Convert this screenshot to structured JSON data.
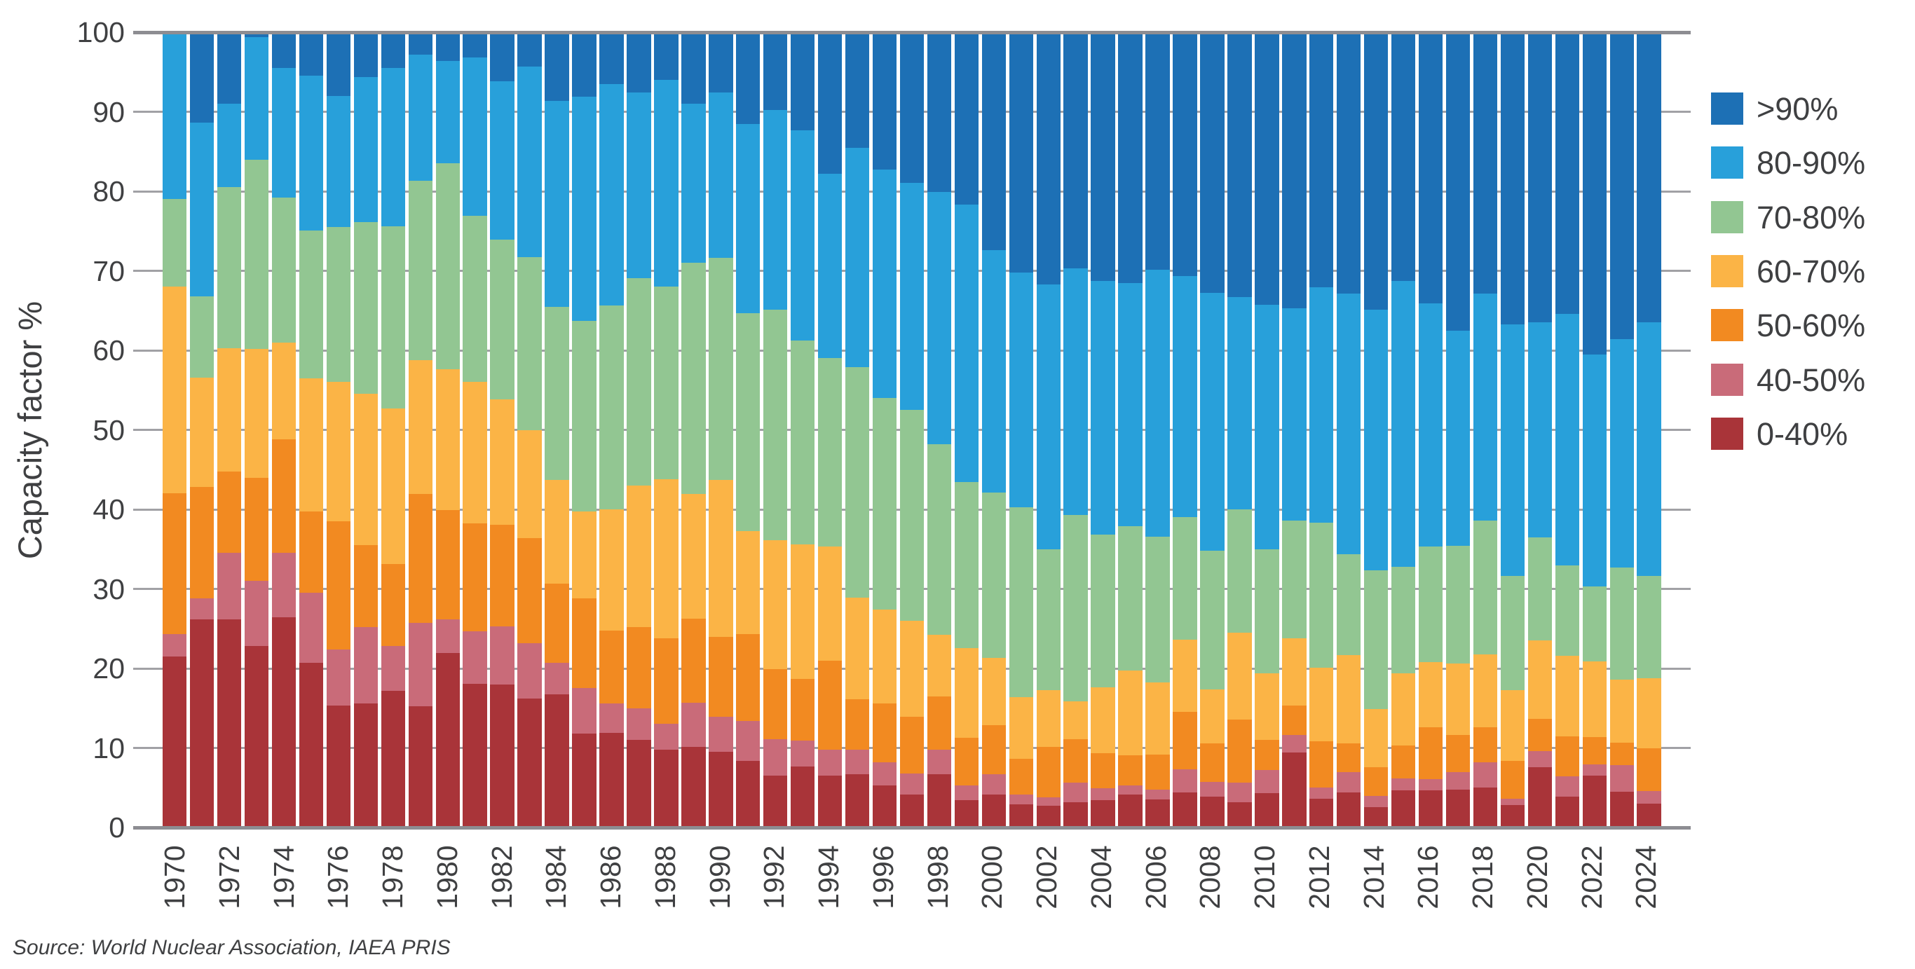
{
  "source": {
    "text": "Source: World Nuclear Association, IAEA PRIS"
  },
  "axes": {
    "y_title": "Capacity factor %",
    "y_ticks": [
      0,
      10,
      20,
      30,
      40,
      50,
      60,
      70,
      80,
      90,
      100
    ],
    "x_tick_labels": [
      "1970",
      "1972",
      "1974",
      "1976",
      "1978",
      "1980",
      "1982",
      "1984",
      "1986",
      "1988",
      "1990",
      "1992",
      "1994",
      "1996",
      "1998",
      "2000",
      "2002",
      "2004",
      "2006",
      "2008",
      "2010",
      "2012",
      "2014",
      "2016",
      "2018",
      "2020",
      "2022",
      "2024"
    ]
  },
  "colors": {
    "grid_minor": "#a1a1a5",
    "grid_major": "#8d8d92",
    "text": "#3f4042"
  },
  "legend": {
    "position": "top-right",
    "entries": [
      {
        "label": ">90%",
        "series_key": "band_gt90"
      },
      {
        "label": "80-90%",
        "series_key": "band_80_90"
      },
      {
        "label": "70-80%",
        "series_key": "band_70_80"
      },
      {
        "label": "60-70%",
        "series_key": "band_60_70"
      },
      {
        "label": "50-60%",
        "series_key": "band_50_60"
      },
      {
        "label": "40-50%",
        "series_key": "band_40_50"
      },
      {
        "label": "0-40%",
        "series_key": "band_0_40"
      }
    ]
  },
  "chart_data": {
    "type": "bar",
    "stacked": true,
    "normalized_percent": true,
    "title": "",
    "xlabel": "",
    "ylabel": "Capacity factor %",
    "ylim": [
      0,
      100
    ],
    "grid": "horizontal",
    "categories": [
      1970,
      1971,
      1972,
      1973,
      1974,
      1975,
      1976,
      1977,
      1978,
      1979,
      1980,
      1981,
      1982,
      1983,
      1984,
      1985,
      1986,
      1987,
      1988,
      1989,
      1990,
      1991,
      1992,
      1993,
      1994,
      1995,
      1996,
      1997,
      1998,
      1999,
      2000,
      2001,
      2002,
      2003,
      2004,
      2005,
      2006,
      2007,
      2008,
      2009,
      2010,
      2011,
      2012,
      2013,
      2014,
      2015,
      2016,
      2017,
      2018,
      2019,
      2020,
      2021,
      2022,
      2023,
      2024
    ],
    "series": [
      {
        "key": "band_0_40",
        "name": "0-40%",
        "color": "#a93439",
        "values": [
          21.5,
          26.2,
          26.2,
          22.8,
          26.4,
          20.7,
          15.3,
          15.6,
          17.2,
          15.2,
          21.9,
          18.1,
          18.0,
          16.2,
          16.7,
          11.8,
          11.9,
          11.0,
          9.8,
          10.1,
          9.5,
          8.4,
          6.5,
          7.7,
          6.5,
          6.7,
          5.3,
          4.1,
          6.7,
          3.4,
          4.1,
          2.9,
          2.7,
          3.2,
          3.4,
          4.1,
          3.5,
          4.4,
          3.9,
          3.2,
          4.3,
          9.4,
          3.6,
          4.4,
          2.6,
          4.7,
          4.7,
          4.8,
          5.0,
          2.8,
          7.6,
          3.9,
          6.5,
          4.5,
          3.0
        ]
      },
      {
        "key": "band_40_50",
        "name": "40-50%",
        "color": "#c96b79",
        "values": [
          2.8,
          2.6,
          8.3,
          8.2,
          8.1,
          8.8,
          7.1,
          9.6,
          5.6,
          10.5,
          4.3,
          6.6,
          7.3,
          7.0,
          4.0,
          5.7,
          3.7,
          4.0,
          3.2,
          5.6,
          4.4,
          5.0,
          4.6,
          3.2,
          3.3,
          3.1,
          2.9,
          2.7,
          3.1,
          1.9,
          2.6,
          1.2,
          1.1,
          2.4,
          1.5,
          1.2,
          1.3,
          2.9,
          1.8,
          2.4,
          2.9,
          2.2,
          1.4,
          2.6,
          1.4,
          1.5,
          1.4,
          2.2,
          3.2,
          0.8,
          2.0,
          2.5,
          1.4,
          3.3,
          1.6
        ]
      },
      {
        "key": "band_50_60",
        "name": "50-60%",
        "color": "#f28a21",
        "values": [
          17.7,
          14.0,
          10.3,
          13.0,
          14.3,
          10.2,
          16.1,
          10.3,
          10.3,
          16.2,
          13.7,
          13.5,
          12.8,
          13.2,
          10.0,
          11.3,
          9.2,
          10.2,
          10.8,
          10.6,
          10.1,
          10.9,
          8.8,
          7.8,
          11.2,
          6.3,
          7.4,
          7.1,
          6.7,
          6.0,
          6.2,
          4.5,
          6.3,
          5.5,
          4.4,
          3.8,
          4.4,
          7.2,
          4.9,
          8.0,
          3.8,
          3.7,
          5.8,
          3.6,
          3.6,
          4.1,
          6.5,
          4.6,
          4.4,
          4.8,
          4.1,
          5.1,
          3.5,
          2.9,
          5.4
        ]
      },
      {
        "key": "band_60_70",
        "name": "60-70%",
        "color": "#fbb446",
        "values": [
          26.0,
          13.8,
          15.5,
          16.2,
          12.2,
          16.8,
          17.5,
          19.0,
          19.6,
          16.9,
          17.7,
          17.8,
          15.7,
          13.6,
          13.0,
          10.9,
          15.2,
          17.8,
          20.0,
          15.6,
          19.7,
          13.0,
          16.2,
          16.9,
          14.3,
          12.8,
          11.8,
          12.1,
          7.7,
          11.3,
          8.4,
          7.8,
          7.2,
          4.8,
          8.3,
          10.6,
          9.0,
          9.1,
          6.8,
          10.9,
          8.4,
          8.5,
          9.3,
          11.1,
          7.3,
          9.1,
          8.2,
          9.0,
          9.2,
          8.9,
          9.8,
          10.1,
          9.5,
          7.9,
          8.8
        ]
      },
      {
        "key": "band_70_80",
        "name": "70-80%",
        "color": "#92c692",
        "values": [
          11.0,
          10.2,
          20.2,
          23.8,
          18.2,
          18.6,
          19.5,
          21.6,
          22.9,
          22.5,
          25.9,
          20.9,
          20.1,
          21.7,
          21.8,
          24.0,
          25.6,
          26.1,
          24.2,
          29.1,
          27.9,
          27.4,
          29.0,
          25.6,
          23.7,
          29.0,
          26.6,
          26.5,
          24.0,
          20.8,
          20.8,
          23.9,
          17.7,
          23.4,
          19.2,
          18.2,
          18.4,
          15.4,
          17.4,
          15.5,
          15.6,
          14.8,
          18.2,
          12.7,
          17.4,
          13.4,
          14.5,
          14.8,
          16.8,
          14.3,
          13.0,
          11.4,
          9.4,
          14.1,
          12.8
        ]
      },
      {
        "key": "band_80_90",
        "name": "80-90%",
        "color": "#28a0da",
        "values": [
          21.0,
          21.8,
          10.5,
          15.4,
          16.3,
          19.4,
          16.5,
          18.3,
          19.9,
          15.9,
          12.9,
          19.9,
          19.9,
          24.0,
          25.9,
          28.2,
          27.9,
          23.3,
          26.0,
          20.0,
          20.8,
          23.8,
          25.1,
          26.5,
          23.2,
          27.6,
          28.7,
          28.6,
          31.7,
          34.9,
          30.5,
          29.5,
          33.3,
          31.0,
          31.9,
          30.6,
          33.5,
          30.3,
          32.4,
          26.7,
          30.7,
          26.7,
          29.6,
          32.7,
          32.8,
          35.9,
          30.6,
          27.1,
          28.5,
          31.7,
          27.0,
          31.6,
          29.2,
          28.7,
          31.9
        ]
      },
      {
        "key": "band_gt90",
        "name": ">90%",
        "color": "#1d70b5",
        "values": [
          0.0,
          11.4,
          9.0,
          0.6,
          4.5,
          5.5,
          8.0,
          5.6,
          4.5,
          2.8,
          3.6,
          3.2,
          6.2,
          4.3,
          8.6,
          8.1,
          6.5,
          7.6,
          6.0,
          9.0,
          7.6,
          11.5,
          9.8,
          12.3,
          17.8,
          14.5,
          17.3,
          18.9,
          20.1,
          21.7,
          27.4,
          30.2,
          31.7,
          29.7,
          31.3,
          31.5,
          29.9,
          30.7,
          32.8,
          33.3,
          34.3,
          34.7,
          32.1,
          32.9,
          34.9,
          31.3,
          34.1,
          37.5,
          32.9,
          36.7,
          36.5,
          35.4,
          40.5,
          38.6,
          36.5
        ]
      }
    ]
  }
}
